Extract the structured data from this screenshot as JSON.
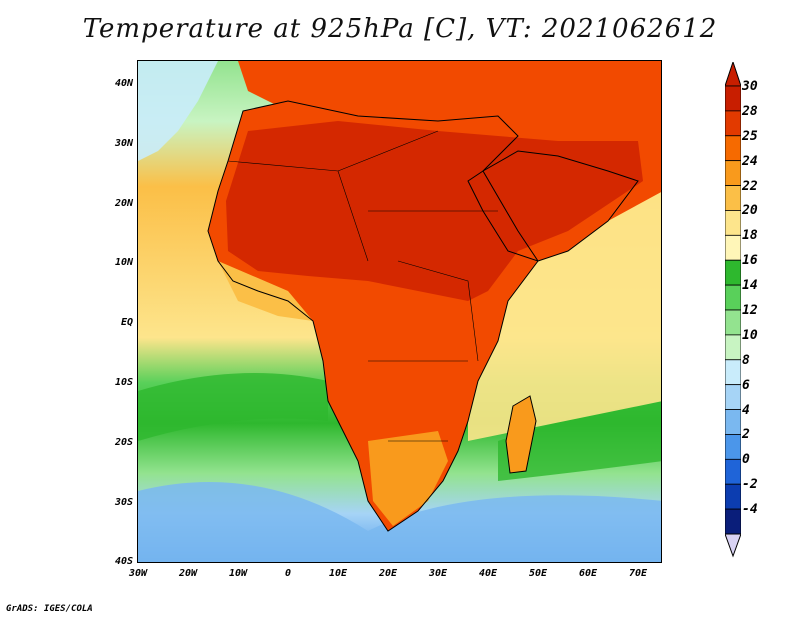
{
  "title": "Temperature at 925hPa [C], VT: 2021062612",
  "credit": "GrADS: IGES/COLA",
  "lat_labels": [
    "40N",
    "30N",
    "20N",
    "10N",
    "EQ",
    "10S",
    "20S",
    "30S",
    "40S"
  ],
  "lon_labels": [
    "30W",
    "20W",
    "10W",
    "0",
    "10E",
    "20E",
    "30E",
    "40E",
    "50E",
    "60E",
    "70E"
  ],
  "colorbar": {
    "labels": [
      "30",
      "28",
      "25",
      "24",
      "22",
      "20",
      "18",
      "16",
      "14",
      "12",
      "10",
      "8",
      "6",
      "4",
      "2",
      "0",
      "-2",
      "-4"
    ],
    "colors": [
      "#c81e00",
      "#e23a00",
      "#f66a00",
      "#f99a1c",
      "#fbbf47",
      "#fde58c",
      "#fff6b8",
      "#2eb82e",
      "#59d05a",
      "#93e38f",
      "#c8f4c2",
      "#c9ecfb",
      "#a6d4f6",
      "#7ab8f0",
      "#4b96ea",
      "#1f64d8",
      "#0c3db0",
      "#0a1e7a"
    ],
    "top_arrow_color": "#c81e00",
    "bottom_arrow_color": "#d9d3f4"
  },
  "map_colors": {
    "ocean_cold": "#7ab8f0",
    "ocean_cool": "#a6d4f6",
    "ocean_green": "#59d05a",
    "ocean_warm": "#fde58c",
    "land_hot": "#d42800",
    "land_warm": "#f24a00",
    "land_mild": "#f99a1c",
    "coast_line": "#000000"
  }
}
